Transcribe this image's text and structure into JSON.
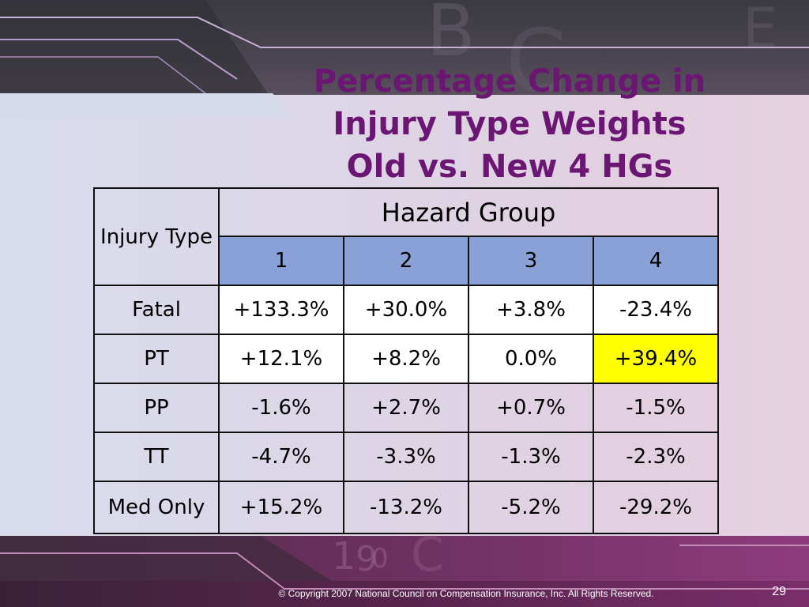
{
  "slide": {
    "title_lines": [
      "Percentage Change in",
      "Injury Type Weights",
      "Old vs. New 4 HGs"
    ],
    "footer": "© Copyright 2007 National Council on Compensation Insurance, Inc. All Rights  Reserved.",
    "page_number": "29"
  },
  "table": {
    "row_header": "Injury Type",
    "group_header": "Hazard Group",
    "group_columns": [
      "1",
      "2",
      "3",
      "4"
    ],
    "rows": [
      {
        "label": "Fatal",
        "values": [
          "+133.3%",
          "+30.0%",
          "+3.8%",
          "-23.4%"
        ]
      },
      {
        "label": "PT",
        "values": [
          "+12.1%",
          "+8.2%",
          "0.0%",
          "+39.4%"
        ]
      },
      {
        "label": "PP",
        "values": [
          "-1.6%",
          "+2.7%",
          "+0.7%",
          "-1.5%"
        ]
      },
      {
        "label": "TT",
        "values": [
          "-4.7%",
          "-3.3%",
          "-1.3%",
          "-2.3%"
        ]
      },
      {
        "label": "Med Only",
        "values": [
          "+15.2%",
          "-13.2%",
          "-5.2%",
          "-29.2%"
        ]
      }
    ],
    "highlight_color": "#ffff00",
    "header_color": "#8aa1d8"
  },
  "colors": {
    "title": "#6b1673",
    "band_top": "#3b3a41",
    "band_bottom": "#6a2f5e"
  }
}
